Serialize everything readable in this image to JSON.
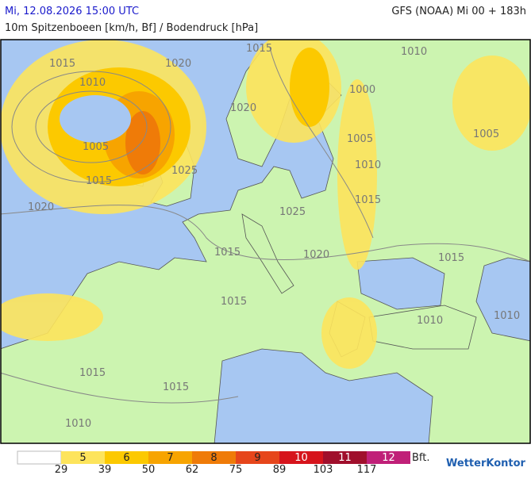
{
  "header": {
    "datetime": "Mi, 12.08.2026 15:00 UTC",
    "model": "GFS (NOAA) Mi 00 + 183h",
    "subtitle": "10m Spitzenboeen [km/h, Bf] / Bodendruck [hPa]"
  },
  "isobars": [
    1015,
    1010,
    1020,
    1005,
    1015,
    1020,
    1025,
    1015,
    1010,
    1000,
    1005,
    1010,
    1015,
    1025,
    1020,
    1020,
    1015,
    1015,
    1015,
    1010,
    1005,
    1015,
    1015,
    1010,
    1010
  ],
  "legend": {
    "empty_color": "#ffffff",
    "classes": [
      {
        "bft": 5,
        "color": "#fde45c"
      },
      {
        "bft": 6,
        "color": "#fcc900"
      },
      {
        "bft": 7,
        "color": "#f7a400"
      },
      {
        "bft": 8,
        "color": "#ef7b08"
      },
      {
        "bft": 9,
        "color": "#e6461c"
      },
      {
        "bft": 10,
        "color": "#d6141c"
      },
      {
        "bft": 11,
        "color": "#a00f2c"
      },
      {
        "bft": 12,
        "color": "#c02078"
      }
    ],
    "kmh": [
      29,
      39,
      50,
      62,
      75,
      89,
      103,
      117
    ],
    "unit": "Bft."
  },
  "logo": "WetterKontor"
}
